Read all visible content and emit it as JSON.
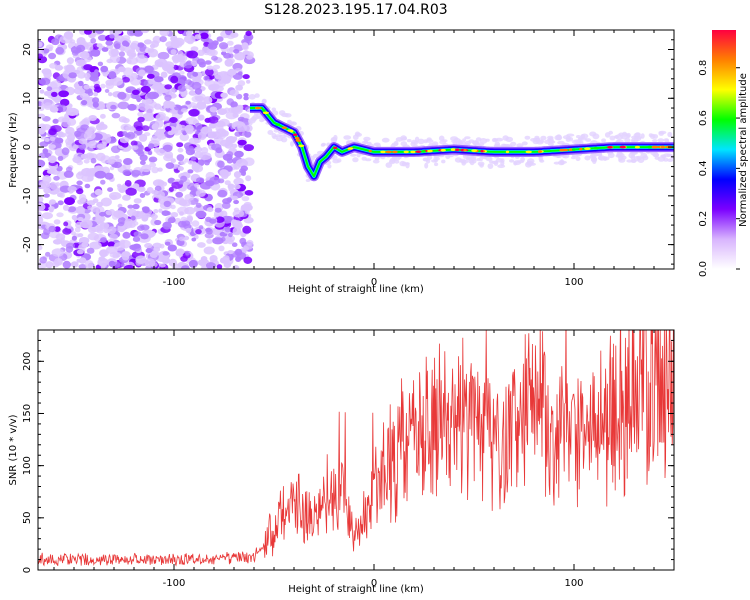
{
  "title": "S128.2023.195.17.04.R03",
  "chart_data": [
    {
      "type": "heatmap",
      "xlabel": "Height of straight line (km)",
      "ylabel": "Frequency (Hz)",
      "xlim": [
        -168,
        150
      ],
      "ylim": [
        -25,
        24
      ],
      "xticks": [
        -100,
        0,
        100
      ],
      "yticks": [
        -20,
        -10,
        0,
        10,
        20
      ],
      "colorbar": {
        "label": "Normalized spectral amplitude",
        "range": [
          0.0,
          0.95
        ],
        "ticks": [
          "0.0",
          "0.2",
          "0.4",
          "0.6",
          "0.8"
        ],
        "colors": [
          "#ffffff",
          "#d8b4fe",
          "#7b00ff",
          "#0000ff",
          "#00e5ff",
          "#00ff00",
          "#ffff00",
          "#ff8000",
          "#ff0040"
        ]
      },
      "noise_region_x": [
        -168,
        -62
      ],
      "ridge": {
        "x": [
          -62,
          -56,
          -50,
          -45,
          -40,
          -36,
          -33,
          -30,
          -27,
          -24,
          -20,
          -16,
          -10,
          0,
          20,
          40,
          60,
          80,
          100,
          120,
          150
        ],
        "y": [
          8,
          8,
          5,
          4,
          3,
          0,
          -4,
          -6,
          -3,
          -2,
          0,
          -1,
          0,
          -1,
          -1,
          -0.5,
          -1,
          -1,
          -0.5,
          0,
          0
        ]
      }
    },
    {
      "type": "line",
      "xlabel": "Height of straight line (km)",
      "ylabel": "SNR (10 * v/v)",
      "xlim": [
        -168,
        150
      ],
      "ylim": [
        0,
        230
      ],
      "xticks": [
        -100,
        0,
        100
      ],
      "yticks": [
        0,
        50,
        100,
        150,
        200
      ],
      "color": "#e83838",
      "series": [
        {
          "x": [
            -168,
            -140,
            -110,
            -80,
            -60,
            -50,
            -40,
            -30,
            -25,
            -20,
            -15,
            -10,
            -5,
            0,
            10,
            20,
            30,
            40,
            50,
            60,
            70,
            80,
            90,
            100,
            110,
            120,
            130,
            140,
            150
          ],
          "values": [
            10,
            10,
            10,
            10,
            12,
            40,
            60,
            50,
            90,
            60,
            70,
            30,
            50,
            90,
            110,
            130,
            145,
            150,
            140,
            115,
            140,
            160,
            125,
            135,
            145,
            150,
            175,
            180,
            180
          ]
        }
      ]
    }
  ]
}
